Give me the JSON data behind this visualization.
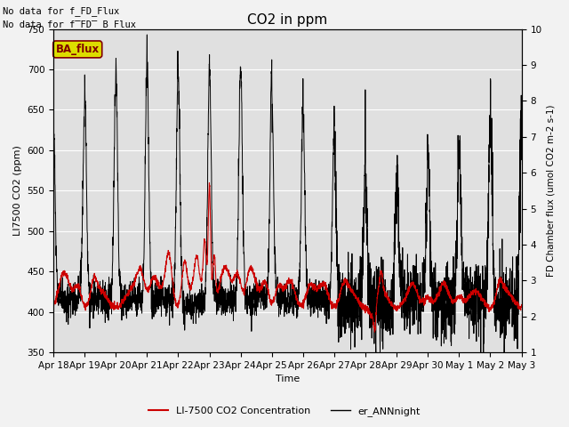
{
  "title": "CO2 in ppm",
  "xlabel": "Time",
  "ylabel_left": "LI7500 CO2 (ppm)",
  "ylabel_right": "FD Chamber flux (umol CO2 m-2 s-1)",
  "ylim_left": [
    350,
    750
  ],
  "ylim_right": [
    1.0,
    10.0
  ],
  "xtick_labels": [
    "Apr 18",
    "Apr 19",
    "Apr 20",
    "Apr 21",
    "Apr 22",
    "Apr 23",
    "Apr 24",
    "Apr 25",
    "Apr 26",
    "Apr 27",
    "Apr 28",
    "Apr 29",
    "Apr 30",
    "May 1",
    "May 2",
    "May 3"
  ],
  "annotation1": "No data for f_FD_Flux",
  "annotation2": "No data for f̅FD̅_B Flux",
  "ba_flux_label": "BA_flux",
  "legend_red": "LI-7500 CO2 Concentration",
  "legend_black": "er_ANNnight",
  "red_color": "#cc0000",
  "black_color": "#000000",
  "bg_color": "#e0e0e0",
  "ba_box_color": "#dddd00",
  "ba_text_color": "#800000",
  "fig_bg": "#f2f2f2",
  "figsize": [
    6.4,
    4.8
  ],
  "dpi": 100
}
